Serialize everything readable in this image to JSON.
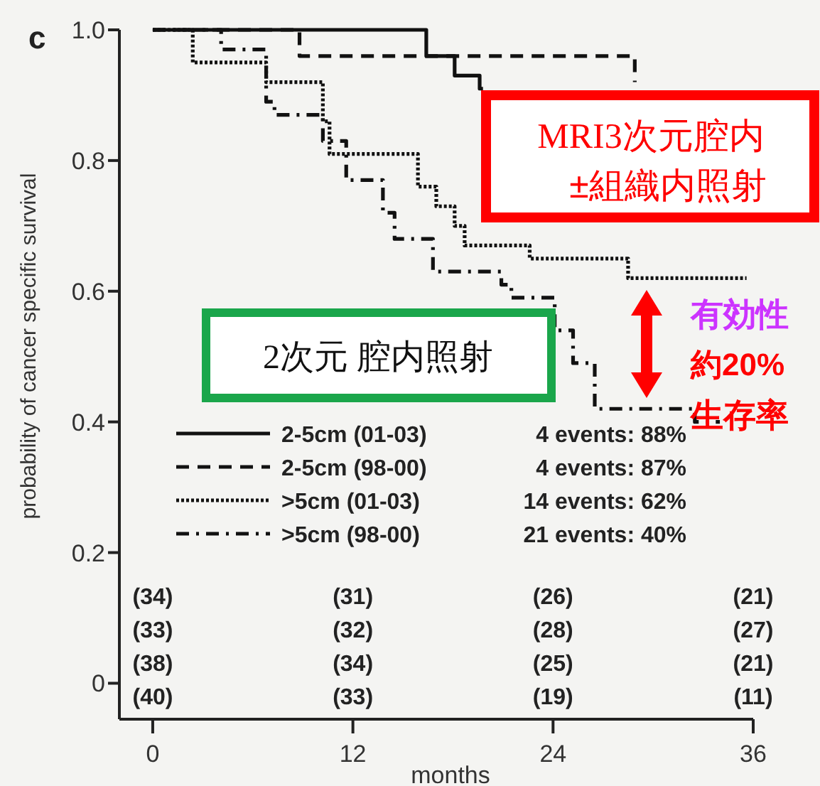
{
  "chart_data": {
    "type": "step",
    "title": "c",
    "xlabel": "months",
    "ylabel": "probability of cancer specific survival",
    "xlim": [
      -2,
      36
    ],
    "ylim": [
      -0.055,
      1.0
    ],
    "xticks": [
      0,
      12,
      24,
      36
    ],
    "yticks": [
      0,
      0.2,
      0.4,
      0.6,
      0.8,
      {
        "value": 1,
        "label": "1.0"
      }
    ],
    "legend": "bottom",
    "grid": false,
    "marker": "none",
    "series": [
      {
        "name": "2-5cm (01-03)",
        "color": "#111111",
        "line_style": "solid",
        "x": [
          0,
          16.4,
          18.1,
          19.6,
          19.8
        ],
        "values": [
          1.0,
          0.96,
          0.93,
          0.91,
          0.91
        ]
      },
      {
        "name": "2-5cm (98-00)",
        "color": "#111111",
        "line_style": "dashed",
        "x": [
          0,
          8.8,
          28.9
        ],
        "values": [
          1.0,
          0.96,
          0.92
        ]
      },
      {
        "name": ">5cm (01-03)",
        "color": "#111111",
        "line_style": "dotted",
        "x": [
          0,
          2.4,
          6.8,
          10.2,
          10.6,
          15.9,
          17,
          18.1,
          18.7,
          22.6,
          28.5,
          35.6
        ],
        "values": [
          1.0,
          0.95,
          0.92,
          0.86,
          0.81,
          0.76,
          0.73,
          0.7,
          0.67,
          0.65,
          0.62,
          0.62
        ]
      },
      {
        "name": ">5cm (98-00)",
        "color": "#111111",
        "line_style": "dashdot",
        "x": [
          0,
          4.1,
          6.8,
          7.3,
          10.2,
          11.6,
          13.8,
          14.5,
          16.8,
          20.9,
          21.5,
          24.1,
          25.2,
          26.5,
          32.5,
          34
        ],
        "values": [
          1.0,
          0.97,
          0.89,
          0.87,
          0.83,
          0.77,
          0.72,
          0.68,
          0.63,
          0.61,
          0.59,
          0.54,
          0.49,
          0.42,
          0.4,
          0.4
        ]
      }
    ],
    "annotations": [
      "MRI3次元腔内",
      "±組織内照射",
      "2次元 腔内照射",
      "有効性",
      "約20%",
      "生存率",
      "4 events: 88%",
      "4 events: 87%",
      "14 events: 62%",
      "21 events: 40%",
      "(34)",
      "(31)",
      "(26)",
      "(21)",
      "(33)",
      "(32)",
      "(28)",
      "(27)",
      "(38)",
      "(34)",
      "(25)",
      "(21)",
      "(40)",
      "(33)",
      "(19)",
      "(11)"
    ]
  }
}
